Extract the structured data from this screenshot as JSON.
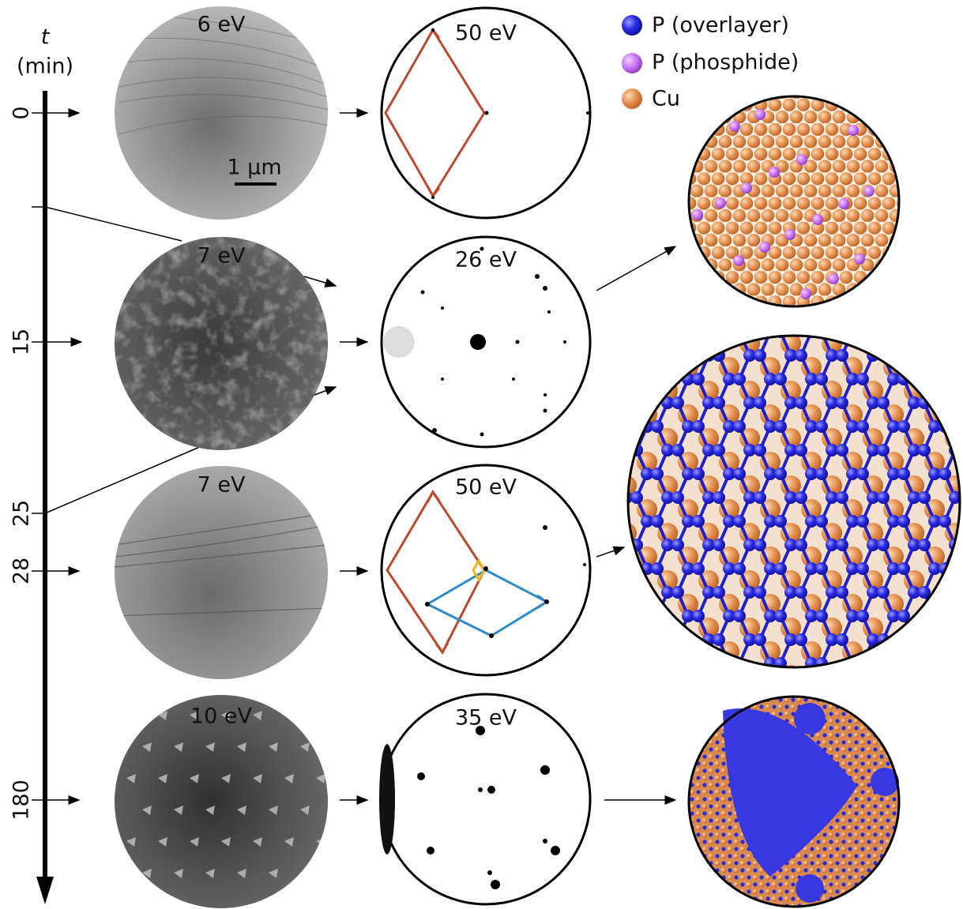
{
  "timeline": {
    "label": "t",
    "unit": "(min)",
    "ticks": [
      0,
      15,
      25,
      28,
      180
    ]
  },
  "rows": [
    {
      "leem_energy": "6 eV",
      "leed_energy": "50 eV"
    },
    {
      "leem_energy": "7 eV",
      "leed_energy": "26 eV"
    },
    {
      "leem_energy": "7 eV",
      "leed_energy": "50 eV"
    },
    {
      "leem_energy": "10 eV",
      "leed_energy": "35 eV"
    }
  ],
  "scale_bar": "1 µm",
  "legend": [
    {
      "label": "P (overlayer)"
    },
    {
      "label": "P (phosphide)"
    },
    {
      "label": "Cu"
    }
  ]
}
